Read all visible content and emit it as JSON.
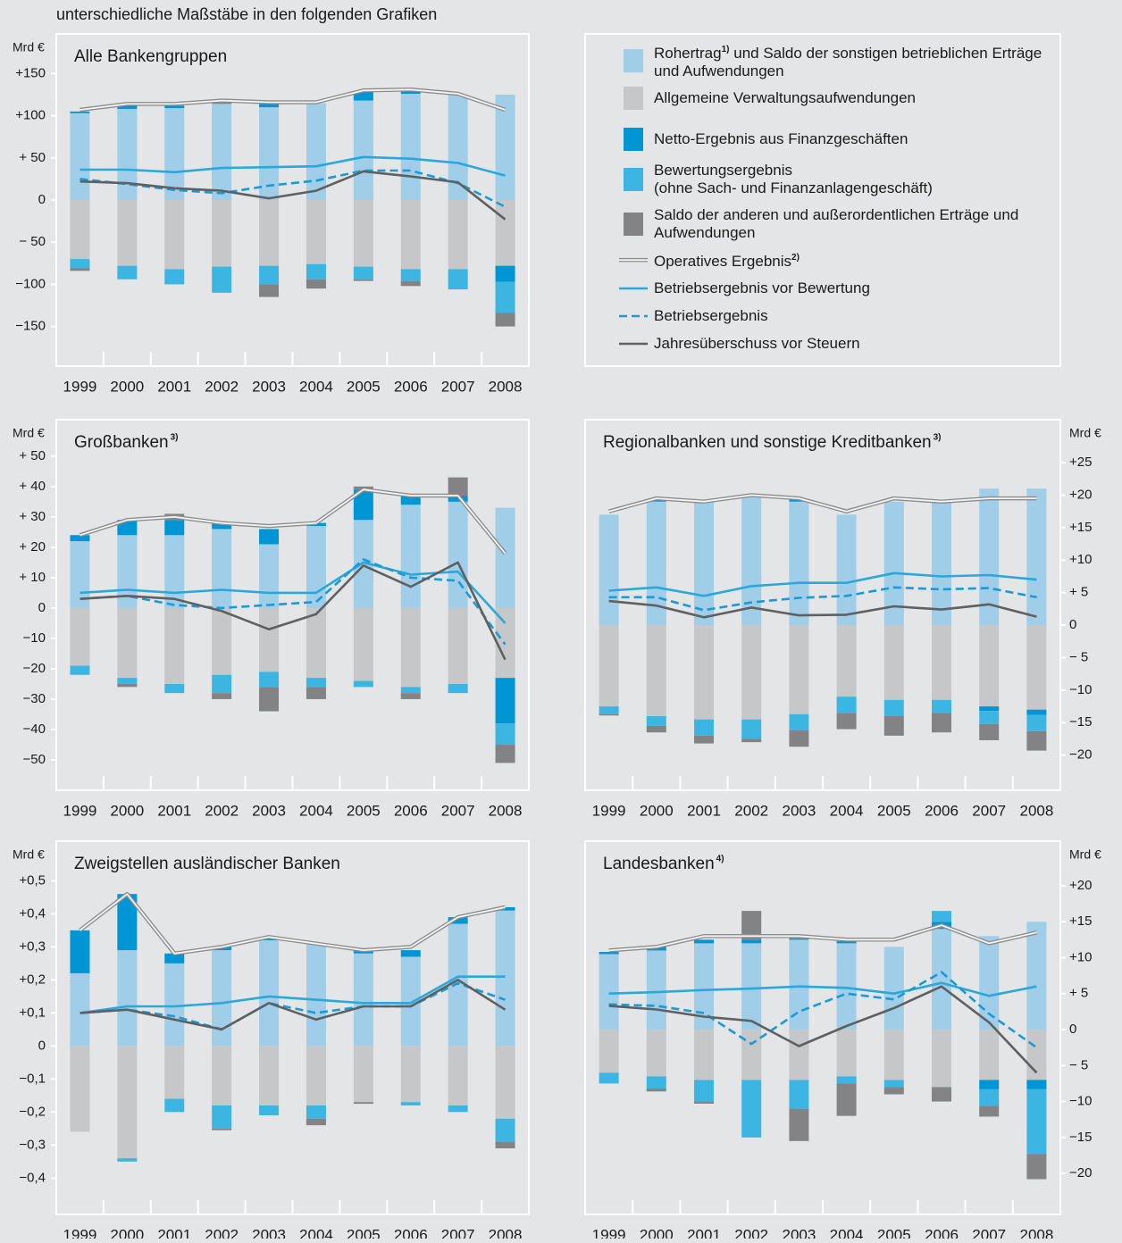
{
  "heading": "unterschiedliche Maßstäbe in den folgenden Grafiken",
  "chart_data": [
    {
      "type": "bar",
      "title": "Alle Bankengruppen",
      "unit": "Mrd €",
      "axis_side": "left",
      "categories": [
        "1999",
        "2000",
        "2001",
        "2002",
        "2003",
        "2004",
        "2005",
        "2006",
        "2007",
        "2008"
      ],
      "ylim": [
        -197,
        197
      ],
      "yticks": [
        {
          "value": 150,
          "label": "+150"
        },
        {
          "value": 100,
          "label": "+100"
        },
        {
          "value": 50,
          "label": "+ 50"
        },
        0,
        {
          "value": -50,
          "label": "− 50"
        },
        {
          "value": -100,
          "label": "−100"
        },
        {
          "value": -150,
          "label": "−150"
        }
      ],
      "series": [
        {
          "name": "Rohertrag",
          "note": "1)",
          "name_cont": "und Saldo der sonstigen betrieblichen Erträge und Aufwendungen",
          "kind": "bar",
          "color": "#a0cde8",
          "values": [
            103,
            108,
            109,
            114,
            110,
            115,
            118,
            126,
            125,
            125
          ]
        },
        {
          "name": "Allgemeine Verwaltungsaufwendungen",
          "kind": "bar",
          "color": "#c6c7c9",
          "values": [
            -70,
            -78,
            -82,
            -79,
            -78,
            -76,
            -79,
            -82,
            -82,
            -78
          ]
        },
        {
          "name": "Netto-Ergebnis aus Finanzgeschäften",
          "kind": "bar",
          "color": "#0095d4",
          "values": [
            2,
            4,
            3,
            0,
            4,
            0,
            11,
            3,
            0,
            -19
          ]
        },
        {
          "name": "Bewertungsergebnis\n(ohne Sach- und Finanzanlagengeschäft)",
          "kind": "bar",
          "color": "#3db5e3",
          "values": [
            -11,
            -16,
            -18,
            -31,
            -22,
            -18,
            -15,
            -14,
            -24,
            -37
          ]
        },
        {
          "name": "Saldo der anderen und außerordentlichen Erträge und Aufwendungen",
          "kind": "bar",
          "color": "#838385",
          "values": [
            -3,
            0,
            0,
            5,
            -15,
            -11,
            -2,
            -6,
            0,
            -16
          ]
        },
        {
          "name": "Operatives Ergebnis",
          "note": "2)",
          "kind": "line",
          "style": "double",
          "color": "#8c8c8c",
          "values": [
            107,
            114,
            114,
            118,
            116,
            116,
            130,
            131,
            126,
            107
          ]
        },
        {
          "name": "Betriebsergebnis vor Bewertung",
          "kind": "line",
          "style": "solid",
          "color": "#2aa8dc",
          "values": [
            36,
            36,
            33,
            38,
            39,
            40,
            51,
            49,
            44,
            29
          ]
        },
        {
          "name": "Betriebsergebnis",
          "kind": "line",
          "style": "dashed",
          "color": "#1a9ad6",
          "values": [
            25,
            19,
            12,
            8,
            17,
            23,
            35,
            35,
            20,
            -8
          ]
        },
        {
          "name": "Jahresüberschuss vor Steuern",
          "kind": "line",
          "style": "solid",
          "color": "#5f6062",
          "values": [
            22,
            20,
            14,
            11,
            2,
            11,
            34,
            28,
            21,
            -23
          ]
        }
      ]
    },
    {
      "type": "bar",
      "title": "Großbanken",
      "title_note": "3)",
      "unit": "Mrd €",
      "axis_side": "left",
      "categories": [
        "1999",
        "2000",
        "2001",
        "2002",
        "2003",
        "2004",
        "2005",
        "2006",
        "2007",
        "2008"
      ],
      "ylim": [
        -60,
        62
      ],
      "yticks": [
        {
          "value": 50,
          "label": "+ 50"
        },
        {
          "value": 40,
          "label": "+ 40"
        },
        {
          "value": 30,
          "label": "+ 30"
        },
        {
          "value": 20,
          "label": "+ 20"
        },
        {
          "value": 10,
          "label": "+ 10"
        },
        0,
        {
          "value": -10,
          "label": "−10"
        },
        {
          "value": -20,
          "label": "−20"
        },
        {
          "value": -30,
          "label": "−30"
        },
        {
          "value": -40,
          "label": "−40"
        },
        {
          "value": -50,
          "label": "−50"
        }
      ],
      "series": [
        {
          "values": [
            22,
            24,
            24,
            26,
            21,
            27,
            29,
            34,
            35,
            33
          ]
        },
        {
          "values": [
            -19,
            -23,
            -25,
            -22,
            -21,
            -23,
            -24,
            -26,
            -25,
            -23
          ]
        },
        {
          "values": [
            2,
            5,
            5,
            2,
            5,
            1,
            10,
            3,
            2,
            -15
          ]
        },
        {
          "values": [
            -3,
            -2,
            -3,
            -6,
            -5,
            -3,
            -2,
            -2,
            -3,
            -7
          ]
        },
        {
          "values": [
            0,
            -1,
            2,
            -2,
            -8,
            -4,
            1,
            -2,
            6,
            -6
          ]
        },
        {
          "values": [
            24,
            29,
            30,
            28,
            27,
            28,
            39,
            37,
            37,
            18
          ]
        },
        {
          "values": [
            5,
            6,
            5,
            6,
            5,
            5,
            15,
            11,
            12,
            -5
          ]
        },
        {
          "values": [
            3,
            4,
            1,
            0,
            1,
            2,
            16,
            10,
            9,
            -12
          ]
        },
        {
          "values": [
            3,
            4,
            3,
            -1,
            -7,
            -2,
            14,
            7,
            15,
            -17
          ]
        }
      ]
    },
    {
      "type": "bar",
      "title": "Regionalbanken und sonstige Kreditbanken",
      "title_note": "3)",
      "unit": "Mrd €",
      "axis_side": "right",
      "categories": [
        "1999",
        "2000",
        "2001",
        "2002",
        "2003",
        "2004",
        "2005",
        "2006",
        "2007",
        "2008"
      ],
      "ylim": [
        -25.4,
        31.6
      ],
      "yticks": [
        {
          "value": 25,
          "label": "+25"
        },
        {
          "value": 20,
          "label": "+20"
        },
        {
          "value": 15,
          "label": "+15"
        },
        {
          "value": 10,
          "label": "+10"
        },
        {
          "value": 5,
          "label": "+ 5"
        },
        0,
        {
          "value": -5,
          "label": "− 5"
        },
        {
          "value": -10,
          "label": "−10"
        },
        {
          "value": -15,
          "label": "−15"
        },
        {
          "value": -20,
          "label": "−20"
        }
      ],
      "series": [
        {
          "values": [
            17,
            19,
            19,
            20,
            19,
            17,
            19,
            19,
            21,
            21
          ]
        },
        {
          "values": [
            -12.5,
            -14,
            -14.5,
            -14.5,
            -13.7,
            -11,
            -11.5,
            -11.5,
            -12.5,
            -13
          ]
        },
        {
          "values": [
            0,
            0.3,
            0,
            0,
            0.3,
            0,
            0,
            0,
            -0.7,
            -0.8
          ]
        },
        {
          "values": [
            -1.2,
            -1.5,
            -2.5,
            -3,
            -2.5,
            -2.5,
            -2.5,
            -2,
            -2,
            -2.5
          ]
        },
        {
          "values": [
            -0.2,
            -1,
            -1.2,
            -0.5,
            -2.5,
            -2.5,
            -3,
            -3,
            -2.5,
            -3
          ]
        },
        {
          "values": [
            17.5,
            19.5,
            19,
            20,
            19.5,
            17.5,
            19.5,
            19,
            19.5,
            19.5
          ]
        },
        {
          "values": [
            5.3,
            5.8,
            4.5,
            6,
            6.5,
            6.5,
            8,
            7.5,
            7.7,
            7
          ]
        },
        {
          "values": [
            4.3,
            4.3,
            2.3,
            3.5,
            4.2,
            4.5,
            5.8,
            5.5,
            5.7,
            4.3
          ]
        },
        {
          "values": [
            3.7,
            3,
            1.2,
            2.7,
            1.5,
            1.6,
            2.9,
            2.4,
            3.2,
            1.3
          ]
        }
      ]
    },
    {
      "type": "bar",
      "title": "Zweigstellen ausländischer Banken",
      "unit": "Mrd €",
      "axis_side": "left",
      "categories": [
        "1999",
        "2000",
        "2001",
        "2002",
        "2003",
        "2004",
        "2005",
        "2006",
        "2007",
        "2008"
      ],
      "ylim": [
        -0.51,
        0.62
      ],
      "yticks": [
        {
          "value": 0.5,
          "label": "+0,5"
        },
        {
          "value": 0.4,
          "label": "+0,4"
        },
        {
          "value": 0.3,
          "label": "+0,3"
        },
        {
          "value": 0.2,
          "label": "+0,2"
        },
        {
          "value": 0.1,
          "label": "+0,1"
        },
        0,
        {
          "value": -0.1,
          "label": "−0,1"
        },
        {
          "value": -0.2,
          "label": "−0,2"
        },
        {
          "value": -0.3,
          "label": "−0,3"
        },
        {
          "value": -0.4,
          "label": "−0,4"
        }
      ],
      "series": [
        {
          "values": [
            0.22,
            0.29,
            0.25,
            0.29,
            0.32,
            0.31,
            0.28,
            0.27,
            0.37,
            0.41
          ]
        },
        {
          "values": [
            -0.26,
            -0.34,
            -0.16,
            -0.18,
            -0.18,
            -0.18,
            -0.17,
            -0.17,
            -0.18,
            -0.22
          ]
        },
        {
          "values": [
            0.13,
            0.17,
            0.03,
            0.01,
            0.01,
            0,
            0.01,
            0.02,
            0.02,
            0.01
          ]
        },
        {
          "values": [
            0,
            -0.01,
            -0.04,
            -0.07,
            -0.03,
            -0.04,
            0,
            -0.01,
            -0.02,
            -0.07
          ]
        },
        {
          "values": [
            0,
            0,
            0,
            -0.005,
            0,
            -0.02,
            -0.005,
            0,
            0,
            -0.02
          ]
        },
        {
          "values": [
            0.35,
            0.46,
            0.28,
            0.3,
            0.33,
            0.31,
            0.29,
            0.3,
            0.39,
            0.42
          ]
        },
        {
          "values": [
            0.1,
            0.12,
            0.12,
            0.13,
            0.15,
            0.14,
            0.13,
            0.13,
            0.21,
            0.21
          ]
        },
        {
          "values": [
            0.1,
            0.11,
            0.09,
            0.05,
            0.13,
            0.1,
            0.12,
            0.12,
            0.19,
            0.14
          ]
        },
        {
          "values": [
            0.1,
            0.11,
            0.08,
            0.05,
            0.13,
            0.08,
            0.12,
            0.12,
            0.2,
            0.11
          ]
        }
      ]
    },
    {
      "type": "bar",
      "title": "Landesbanken",
      "title_note": "4)",
      "unit": "Mrd €",
      "axis_side": "right",
      "categories": [
        "1999",
        "2000",
        "2001",
        "2002",
        "2003",
        "2004",
        "2005",
        "2006",
        "2007",
        "2008"
      ],
      "ylim": [
        -25.7,
        26.2
      ],
      "yticks": [
        {
          "value": 20,
          "label": "+20"
        },
        {
          "value": 15,
          "label": "+15"
        },
        {
          "value": 10,
          "label": "+10"
        },
        {
          "value": 5,
          "label": "+ 5"
        },
        0,
        {
          "value": -5,
          "label": "− 5"
        },
        {
          "value": -10,
          "label": "−10"
        },
        {
          "value": -15,
          "label": "−15"
        },
        {
          "value": -20,
          "label": "−20"
        }
      ],
      "series": [
        {
          "values": [
            10.5,
            11,
            12,
            12,
            12.5,
            12,
            11.5,
            14,
            13,
            15
          ]
        },
        {
          "values": [
            -6,
            -6.5,
            -7,
            -7,
            -7,
            -6.5,
            -7,
            -8,
            -7,
            -7
          ]
        },
        {
          "values": [
            0.3,
            0.5,
            0.5,
            0.5,
            0.2,
            0.3,
            0,
            1,
            -1.3,
            -1.3
          ]
        },
        {
          "values": [
            -1.5,
            -1.7,
            -3,
            -8,
            -4,
            -1,
            -1,
            1.5,
            -2.3,
            -9
          ]
        },
        {
          "values": [
            0,
            -0.4,
            -0.3,
            4,
            -4.5,
            -4.5,
            -1,
            -2,
            -1.5,
            -3.5
          ]
        },
        {
          "values": [
            11,
            11.5,
            13,
            13,
            13,
            12.5,
            12.5,
            14.5,
            12,
            13.5
          ]
        },
        {
          "values": [
            5,
            5.2,
            5.5,
            5.7,
            6,
            5.8,
            5,
            6.5,
            4.7,
            6
          ]
        },
        {
          "values": [
            3.5,
            3.3,
            2.3,
            -2,
            2.5,
            5,
            4.2,
            8,
            2.2,
            -2.5
          ]
        },
        {
          "values": [
            3.3,
            2.8,
            1.8,
            1.2,
            -2.3,
            0.5,
            3,
            6,
            1,
            -6
          ]
        }
      ]
    }
  ]
}
